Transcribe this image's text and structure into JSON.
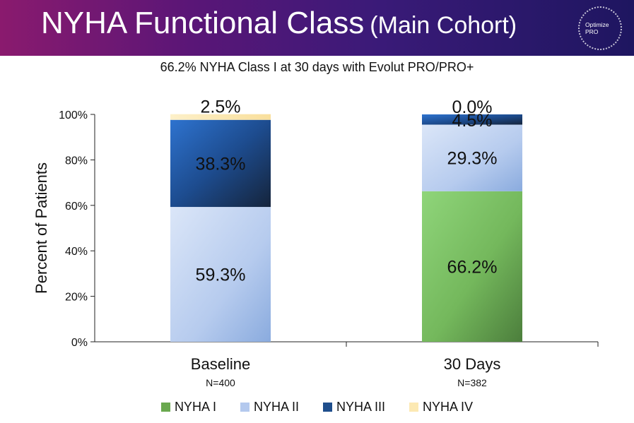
{
  "header": {
    "title": "NYHA Functional Class",
    "subtitle": "(Main Cohort)",
    "logo_line1": "Optimize",
    "logo_line2": "PRO"
  },
  "chart_data": {
    "type": "bar",
    "stacked": true,
    "title": "66.2% NYHA Class I at 30 days with Evolut PRO/PRO+",
    "ylabel": "Percent of Patients",
    "xlabel": "",
    "ylim": [
      0,
      100
    ],
    "yticks": [
      "0%",
      "20%",
      "40%",
      "60%",
      "80%",
      "100%"
    ],
    "categories": [
      "Baseline",
      "30 Days"
    ],
    "category_notes": [
      "N=400",
      "N=382"
    ],
    "series": [
      {
        "name": "NYHA I",
        "values": [
          0.0,
          66.2
        ],
        "labels": [
          "",
          "66.2%"
        ],
        "color": "#6aa84f"
      },
      {
        "name": "NYHA II",
        "values": [
          59.3,
          29.3
        ],
        "labels": [
          "59.3%",
          "29.3%"
        ],
        "color": "#b4c9ee"
      },
      {
        "name": "NYHA III",
        "values": [
          38.3,
          4.5
        ],
        "labels": [
          "38.3%",
          "4.5%"
        ],
        "color": "#1f4e8c"
      },
      {
        "name": "NYHA IV",
        "values": [
          2.5,
          0.0
        ],
        "labels": [
          "2.5%",
          "0.0%"
        ],
        "color": "#fce9b3"
      }
    ],
    "grid": false,
    "legend_position": "bottom"
  }
}
